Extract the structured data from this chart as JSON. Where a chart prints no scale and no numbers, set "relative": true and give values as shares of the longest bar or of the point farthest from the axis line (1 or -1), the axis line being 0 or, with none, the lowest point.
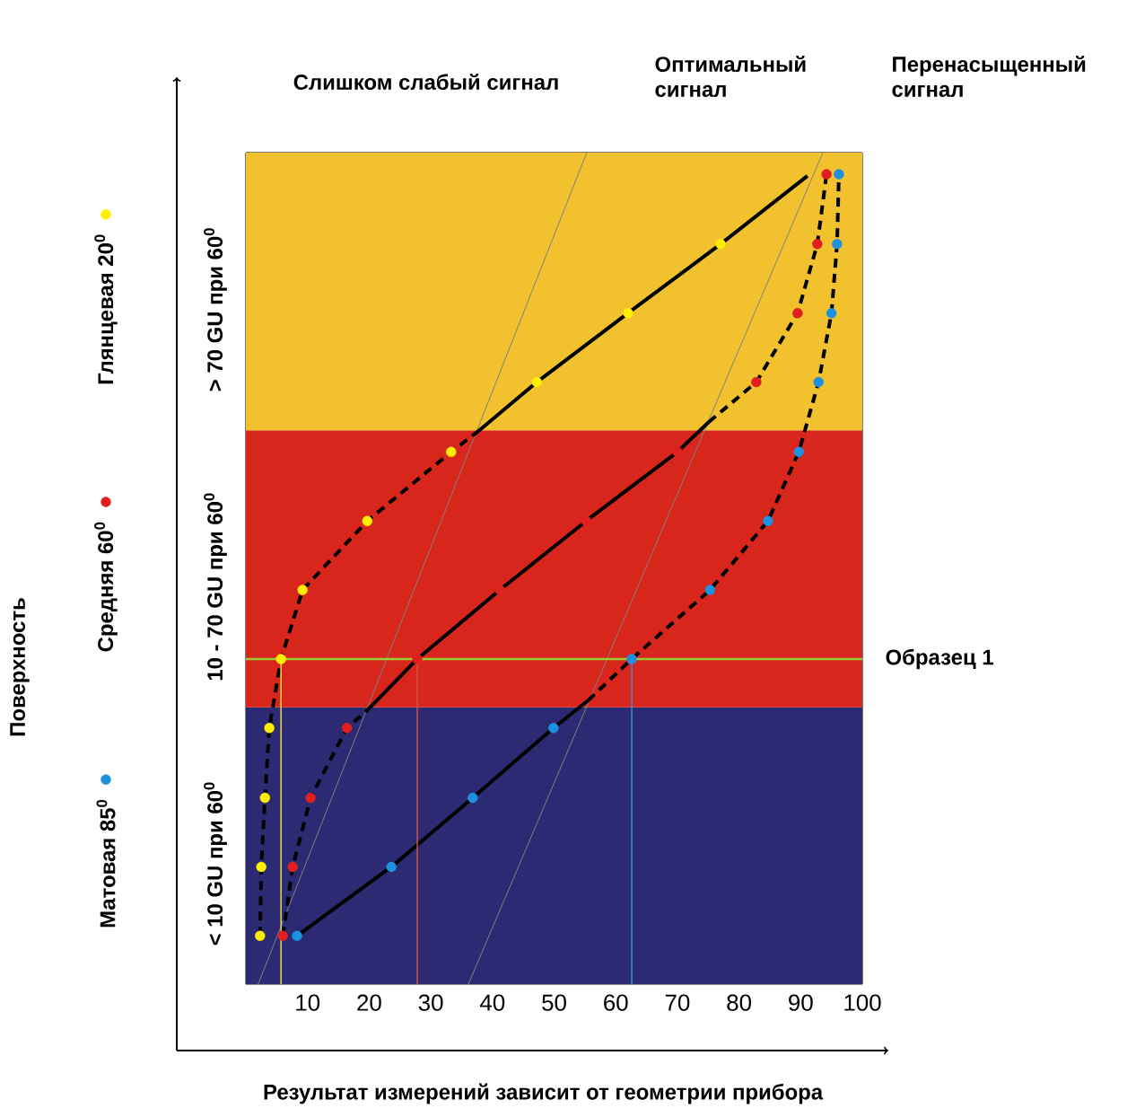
{
  "chart_data": {
    "type": "line",
    "relative": true,
    "legend": "left",
    "xlabel": "Результат измерений зависит от геометрии прибора",
    "xlim": [
      0,
      100
    ],
    "xticks": [
      10,
      20,
      30,
      40,
      50,
      60,
      70,
      80,
      90,
      100
    ],
    "annotations": [
      "Слишком слабый сигнал",
      "Оптимальный сигнал",
      "Перенасыщенный сигнал",
      "Поверхность"
    ],
    "bands": [
      {
        "axis": "y",
        "from": 0,
        "to": 0.333,
        "label": "< 10 GU при 60$^{0}$",
        "color": "#2b2a72"
      },
      {
        "axis": "y",
        "from": 0.333,
        "to": 0.666,
        "label": "10 - 70 GU при 60$^{0}$",
        "color": "#d9261c"
      },
      {
        "axis": "y",
        "from": 0.666,
        "to": 1,
        "label": "> 70 GU при 60$^{0}$",
        "color": "#f2c12e"
      }
    ],
    "ref_lines": [
      {
        "axis": "y",
        "value": 0.391,
        "label": "Образец 1",
        "color": "#9acd32"
      },
      {
        "axis": "x",
        "value": 5.7,
        "color": "#e8d84a"
      },
      {
        "axis": "x",
        "value": 27.8,
        "color": "#d05040"
      },
      {
        "axis": "x",
        "value": 62.6,
        "color": "#3a8ad0"
      }
    ],
    "series": [
      {
        "color": "#808080",
        "line_style": "solid",
        "x": [
          2.0,
          55.3
        ],
        "values": [
          0,
          1
        ]
      },
      {
        "color": "#808080",
        "line_style": "solid",
        "x": [
          36.1,
          93.6
        ],
        "values": [
          0,
          1
        ]
      },
      {
        "color": "#000000",
        "line_style": "dashed",
        "x": [
          2.3,
          2.5,
          3.1,
          3.8,
          5.7,
          9.2,
          19.7,
          33.3,
          37.7
        ],
        "values": [
          0.058,
          0.141,
          0.224,
          0.308,
          0.391,
          0.474,
          0.557,
          0.64,
          0.665
        ]
      },
      {
        "color": "#000000",
        "line_style": "solid",
        "x": [
          37.7,
          47.2,
          62,
          77,
          91.1
        ],
        "values": [
          0.665,
          0.724,
          0.807,
          0.89,
          0.972
        ]
      },
      {
        "color": "#000000",
        "line_style": "dashed",
        "x": [
          6.0,
          7.6,
          10.5,
          16.4,
          19.8
        ],
        "values": [
          0.058,
          0.141,
          0.224,
          0.308,
          0.33
        ]
      },
      {
        "color": "#000000",
        "line_style": "solid",
        "x": [
          19.8,
          27.8,
          41.2,
          55.2,
          70,
          75.1
        ],
        "values": [
          0.33,
          0.391,
          0.474,
          0.557,
          0.64,
          0.676
        ]
      },
      {
        "color": "#000000",
        "line_style": "dashed",
        "x": [
          75.1,
          82.8,
          89.5,
          92.7,
          94.2
        ],
        "values": [
          0.676,
          0.724,
          0.807,
          0.89,
          0.974
        ]
      },
      {
        "color": "#000000",
        "line_style": "solid",
        "x": [
          8.3,
          23.6,
          36.8,
          49.9,
          55.5
        ],
        "values": [
          0.058,
          0.141,
          0.224,
          0.308,
          0.341
        ]
      },
      {
        "color": "#000000",
        "line_style": "dashed",
        "x": [
          55.5,
          62.6,
          75.3,
          84.7,
          89.7,
          92.9,
          95,
          95.9,
          96.2
        ],
        "values": [
          0.341,
          0.391,
          0.474,
          0.557,
          0.64,
          0.724,
          0.807,
          0.89,
          0.974
        ]
      },
      {
        "type": "scatter",
        "name": "Матовая 85$^{0}$",
        "color": "#1e90e0",
        "marker": "circle",
        "x": [
          8.3,
          23.6,
          36.8,
          49.9,
          62.6,
          75.3,
          84.7,
          89.7,
          92.9,
          95,
          95.9,
          96.2
        ],
        "values": [
          0.058,
          0.141,
          0.224,
          0.308,
          0.391,
          0.474,
          0.557,
          0.64,
          0.724,
          0.807,
          0.89,
          0.974
        ]
      },
      {
        "type": "scatter",
        "name": "Средняя 60$^{0}$",
        "color": "#e02020",
        "marker": "circle",
        "x": [
          6.0,
          7.6,
          10.5,
          16.4,
          27.8,
          41.2,
          55.2,
          70,
          82.8,
          89.5,
          92.7,
          94.2
        ],
        "values": [
          0.058,
          0.141,
          0.224,
          0.308,
          0.391,
          0.474,
          0.557,
          0.64,
          0.724,
          0.807,
          0.89,
          0.974
        ]
      },
      {
        "type": "scatter",
        "name": "Глянцевая 20$^{0}$",
        "color": "#ffee00",
        "marker": "circle",
        "x": [
          2.3,
          2.5,
          3.1,
          3.8,
          5.7,
          9.2,
          19.7,
          33.3,
          47.2,
          62,
          77
        ],
        "values": [
          0.058,
          0.141,
          0.224,
          0.308,
          0.391,
          0.474,
          0.557,
          0.64,
          0.724,
          0.807,
          0.89
        ]
      }
    ]
  }
}
